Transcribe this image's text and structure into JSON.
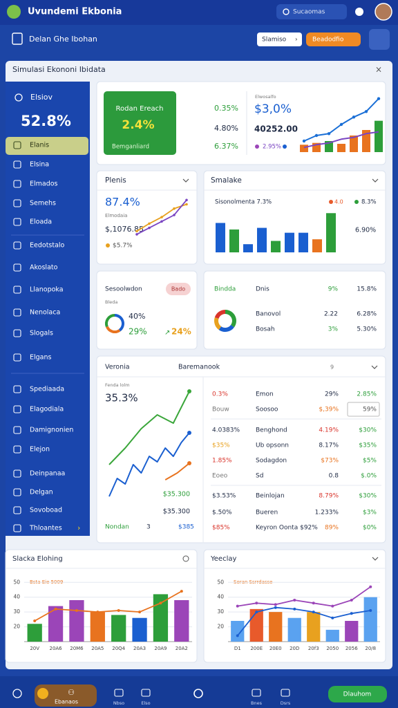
{
  "header": {
    "title": "Uvundemi Ekbonia",
    "search": "Sucaomas"
  },
  "toolbar": {
    "title": "Delan Ghe Ibohan",
    "primary": "Slamiso",
    "secondary": "Beadodfio"
  },
  "panel": {
    "title": "Simulasi Ekononi Ibidata"
  },
  "sidebar": {
    "heading": "Elsiov",
    "value": "52.8%",
    "items": [
      "Elanis",
      "Elsina",
      "Elmados",
      "Semehs",
      "Eloada",
      "Eedotstalo",
      "Akoslato",
      "Llanopoka",
      "Nenolaca",
      "Slogals",
      "Elgans",
      "Spediaada",
      "Elagodiala",
      "Damignonien",
      "Elejon",
      "Deinpanaa",
      "Delgan",
      "Sovoboad",
      "Thloantes"
    ]
  },
  "summary": {
    "badge": {
      "title": "Rodan Ereach",
      "value": "2.4%",
      "caption": "Bemganliard"
    },
    "stats": [
      "0.35%",
      "4.80%",
      "6.37%"
    ],
    "note": "Elwosalfo",
    "kpi": "$3,0%",
    "kpi_sub": "40252.00",
    "legend": "2.95%",
    "chart": {
      "ylim": [
        0,
        60
      ],
      "bars": [
        8,
        10,
        12,
        9,
        18,
        24,
        34
      ],
      "bar_colors": [
        "#e8731f",
        "#e8731f",
        "#2d9e3a",
        "#e8731f",
        "#e8731f",
        "#e8731f",
        "#2d9e3a"
      ],
      "lines": [
        {
          "color": "#1a6fd6",
          "values": [
            12,
            18,
            20,
            30,
            38,
            44,
            58
          ]
        },
        {
          "color": "#7a45c2",
          "values": [
            5,
            8,
            10,
            14,
            16,
            20,
            22
          ]
        }
      ]
    }
  },
  "plenis": {
    "title": "Plenis",
    "value": "87.4%",
    "label": "Elmodaia",
    "amount": "$,1076.85",
    "legend": "$5.7%",
    "chart": {
      "ylim": [
        0,
        40
      ],
      "lines": [
        {
          "color": "#e8a11f",
          "values": [
            5,
            12,
            18,
            26,
            30
          ]
        },
        {
          "color": "#7a45c2",
          "values": [
            2,
            8,
            14,
            20,
            34
          ]
        }
      ]
    }
  },
  "smalake": {
    "title": "Smalake",
    "subtitle": "Sisonolmenta 7.3%",
    "legend": [
      "4.0",
      "8.3%"
    ],
    "side": "6.90%",
    "chart": {
      "ylim": [
        0,
        55
      ],
      "values": [
        36,
        28,
        10,
        30,
        14,
        24,
        24,
        16,
        48
      ],
      "colors": [
        "#1a5fd0",
        "#2d9e3a",
        "#1a5fd0",
        "#1a5fd0",
        "#2d9e3a",
        "#1a5fd0",
        "#1a5fd0",
        "#e8731f",
        "#2d9e3a"
      ]
    }
  },
  "sesool": {
    "title": "Sesoolwdon",
    "tag": "Bado",
    "caption": "Bleda",
    "value": "40%",
    "change": "29%",
    "trend": "24%",
    "chart": {
      "values": [
        40,
        29,
        31
      ],
      "colors": [
        "#1a5fd0",
        "#e8731f",
        "#2d9e3a"
      ]
    }
  },
  "dnis": {
    "header": [
      "Bindda",
      "Dnis",
      "9%",
      "15.8%"
    ],
    "rows": [
      [
        "Banovol",
        "2.22",
        "6.28%"
      ],
      [
        "Bosah",
        "3%",
        "5.30%"
      ]
    ],
    "chart": {
      "values": [
        35,
        25,
        20,
        20
      ],
      "colors": [
        "#2d9e3a",
        "#1a5fd0",
        "#e8a11f",
        "#d9342b"
      ]
    }
  },
  "veronia": {
    "title": "Veronia",
    "subtitle": "Baremanook",
    "count": "9",
    "caption": "Fenda lolm",
    "value": "35.3%",
    "amounts": [
      "$35.300",
      "$35.300"
    ],
    "footer": [
      "Nondan",
      "3",
      "$385"
    ],
    "chart": {
      "xlim": [
        0,
        10
      ],
      "ylim": [
        0,
        80
      ],
      "series": [
        {
          "color": "#3aa63a",
          "x": [
            0,
            2,
            4,
            6,
            8,
            10
          ],
          "values": [
            24,
            36,
            50,
            60,
            54,
            77
          ]
        },
        {
          "color": "#1a5fd0",
          "x": [
            0,
            1,
            2,
            3,
            4,
            5,
            6,
            7,
            8,
            9,
            10
          ],
          "values": [
            1,
            14,
            10,
            24,
            18,
            30,
            26,
            36,
            30,
            40,
            47
          ]
        },
        {
          "color": "#e8731f",
          "x": [
            7,
            8.5,
            10
          ],
          "values": [
            13,
            18,
            25
          ]
        }
      ]
    },
    "table": {
      "rows": [
        [
          "0.3%",
          "Emon",
          "29%",
          "2.85%"
        ],
        [
          "Bouw",
          "Soosoo",
          "$,39%",
          "59%"
        ],
        [
          "4.0383%",
          "Benghond",
          "4.19%",
          "$30%"
        ],
        [
          "$35%",
          "Ub opsonn",
          "8.17%",
          "$35%"
        ],
        [
          "1.85%",
          "Sodagdon",
          "$73%",
          "$5%"
        ],
        [
          "Eoeo",
          "Sd",
          "0.8",
          "$.0%"
        ],
        [
          "$3.53%",
          "Beinlojan",
          "8.79%",
          "$30%"
        ],
        [
          "$.50%",
          "Bueren",
          "1.233%",
          "$3%"
        ],
        [
          "$85%",
          "Keyron Oonta $92%",
          "89%",
          "$0%"
        ]
      ]
    }
  },
  "slacka": {
    "title": "Slacka Elohing",
    "legend": "Bsta Eie 5009",
    "chart": {
      "categories": [
        "20V",
        "20A6",
        "20M6",
        "20A5",
        "20Q4",
        "20A3",
        "20A9",
        "20A2"
      ],
      "ylim": [
        10,
        52
      ],
      "yticks": [
        20,
        30,
        40,
        50
      ],
      "bars": [
        22,
        34,
        38,
        30,
        28,
        26,
        42,
        38
      ],
      "bar_colors": [
        "#2d9e3a",
        "#9b45b8",
        "#9b45b8",
        "#e8731f",
        "#2d9e3a",
        "#1a5fd0",
        "#2d9e3a",
        "#9b45b8"
      ],
      "lines": [
        {
          "color": "#e8731f",
          "values": [
            24,
            32,
            31,
            30,
            31,
            30,
            36,
            44
          ]
        }
      ]
    }
  },
  "yeeclay": {
    "title": "Yeeclay",
    "legend": "Soran Ssrrdasse",
    "chart": {
      "categories": [
        "D1",
        "200E",
        "20E0",
        "20D",
        "20f3",
        "2050",
        "2056",
        "20/8"
      ],
      "ylim": [
        10,
        52
      ],
      "yticks": [
        20,
        30,
        40,
        50
      ],
      "bars": [
        24,
        32,
        30,
        26,
        30,
        18,
        24,
        40
      ],
      "bar_colors": [
        "#5aa2f0",
        "#e85a2b",
        "#e8731f",
        "#5aa2f0",
        "#e8a11f",
        "#5aa2f0",
        "#9b45b8",
        "#5aa2f0"
      ],
      "lines": [
        {
          "color": "#1a5fd0",
          "values": [
            14,
            30,
            33,
            32,
            30,
            26,
            29,
            31
          ]
        },
        {
          "color": "#9b45b8",
          "values": [
            34,
            36,
            35,
            38,
            36,
            34,
            38,
            47
          ]
        }
      ]
    }
  },
  "nav": {
    "items": [
      "Ebanaos",
      "Nbso",
      "Elso",
      "Bnes",
      "Dsrs"
    ],
    "action": "Dlauhom"
  }
}
